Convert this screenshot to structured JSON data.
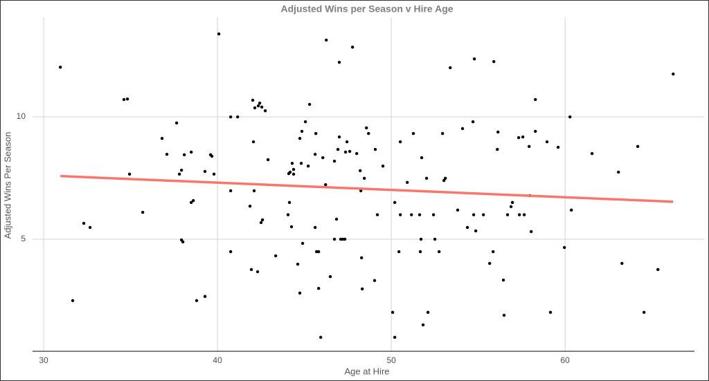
{
  "chart_data": {
    "type": "scatter",
    "title": "Adjusted Wins per Season v Hire Age",
    "x_label": "Age at Hire",
    "y_label": "Adjusted Wins Per Season",
    "xlim": [
      29.36,
      68.0
    ],
    "ylim": [
      0.42,
      14.07
    ],
    "xticks": [
      30,
      40,
      50,
      60
    ],
    "yticks": [
      5,
      10
    ],
    "grid": true,
    "color": "#000000",
    "x": [
      30.96,
      31.67,
      32.31,
      32.67,
      34.62,
      34.82,
      34.94,
      35.7,
      36.81,
      37.09,
      37.65,
      37.81,
      37.93,
      37.93,
      38.01,
      38.09,
      38.49,
      38.49,
      38.61,
      38.8,
      39.28,
      39.28,
      39.6,
      39.68,
      39.8,
      40.08,
      40.76,
      40.76,
      40.76,
      41.16,
      41.87,
      41.95,
      42.03,
      42.07,
      42.11,
      42.15,
      42.35,
      42.43,
      42.31,
      42.51,
      42.59,
      42.55,
      42.75,
      42.91,
      43.35,
      44.06,
      44.1,
      44.18,
      44.14,
      44.26,
      44.3,
      44.38,
      44.38,
      44.62,
      44.74,
      44.74,
      44.82,
      44.86,
      44.9,
      45.06,
      45.22,
      45.3,
      45.62,
      45.66,
      45.62,
      45.7,
      45.82,
      45.82,
      45.94,
      46.06,
      46.22,
      46.26,
      46.49,
      46.73,
      46.73,
      46.85,
      46.93,
      47.01,
      47.01,
      47.09,
      47.21,
      47.33,
      47.37,
      47.45,
      47.61,
      47.77,
      48.01,
      48.21,
      48.25,
      48.29,
      48.33,
      48.45,
      48.57,
      48.69,
      49.04,
      49.08,
      49.2,
      49.52,
      50.08,
      50.2,
      50.2,
      50.44,
      50.52,
      50.52,
      50.92,
      51.16,
      51.27,
      51.63,
      51.67,
      51.71,
      51.75,
      51.83,
      52.03,
      52.11,
      52.43,
      52.51,
      52.75,
      52.95,
      53.03,
      53.11,
      53.39,
      53.82,
      54.1,
      54.38,
      54.7,
      54.74,
      54.78,
      54.86,
      55.3,
      55.66,
      55.86,
      55.9,
      56.1,
      56.14,
      56.45,
      56.49,
      56.69,
      56.89,
      56.97,
      57.33,
      57.37,
      57.57,
      57.65,
      57.93,
      57.97,
      58.05,
      58.29,
      58.29,
      58.96,
      59.16,
      59.6,
      59.96,
      60.28,
      60.36,
      61.55,
      63.07,
      63.27,
      64.18,
      64.54,
      65.34,
      66.22
    ],
    "y": [
      12.03,
      2.49,
      5.65,
      5.48,
      10.71,
      10.73,
      7.66,
      6.1,
      9.12,
      8.47,
      9.75,
      7.66,
      7.82,
      4.97,
      4.89,
      8.45,
      8.56,
      6.5,
      6.58,
      2.49,
      7.77,
      2.66,
      8.45,
      8.39,
      7.66,
      13.39,
      10.0,
      6.98,
      4.49,
      10.0,
      6.35,
      3.76,
      10.68,
      8.98,
      6.98,
      10.37,
      10.45,
      10.56,
      3.67,
      5.68,
      5.79,
      10.4,
      10.25,
      8.25,
      4.32,
      6.0,
      7.68,
      7.74,
      6.5,
      5.51,
      8.1,
      7.85,
      7.66,
      3.98,
      9.12,
      2.8,
      8.1,
      9.41,
      4.83,
      9.8,
      7.99,
      10.51,
      5.48,
      9.32,
      8.47,
      4.49,
      4.49,
      2.99,
      0.99,
      8.33,
      7.23,
      13.14,
      3.47,
      8.19,
      5.0,
      5.82,
      8.67,
      9.18,
      12.23,
      5.0,
      5.0,
      5.0,
      8.56,
      8.98,
      8.59,
      12.85,
      8.5,
      7.8,
      6.98,
      4.24,
      2.97,
      7.49,
      9.55,
      9.32,
      3.31,
      8.67,
      6.0,
      7.99,
      2.01,
      6.5,
      0.99,
      4.49,
      6.0,
      8.98,
      7.32,
      6.0,
      9.32,
      6.0,
      4.49,
      5.0,
      8.33,
      1.5,
      7.49,
      2.01,
      6.0,
      5.0,
      4.49,
      9.32,
      7.4,
      7.49,
      12.01,
      6.19,
      9.52,
      5.48,
      9.8,
      6.0,
      12.37,
      5.34,
      6.0,
      4.01,
      4.49,
      12.26,
      8.67,
      9.38,
      3.33,
      1.89,
      6.0,
      6.33,
      6.5,
      9.15,
      6.0,
      9.18,
      6.0,
      8.79,
      6.78,
      5.31,
      10.71,
      9.41,
      8.98,
      2.01,
      8.76,
      4.66,
      10.0,
      6.19,
      8.5,
      7.74,
      4.01,
      8.79,
      2.01,
      3.76,
      11.75
    ],
    "trend": {
      "color": "#f8766d",
      "x": [
        30.96,
        66.22
      ],
      "y": [
        7.58,
        6.53
      ]
    }
  }
}
